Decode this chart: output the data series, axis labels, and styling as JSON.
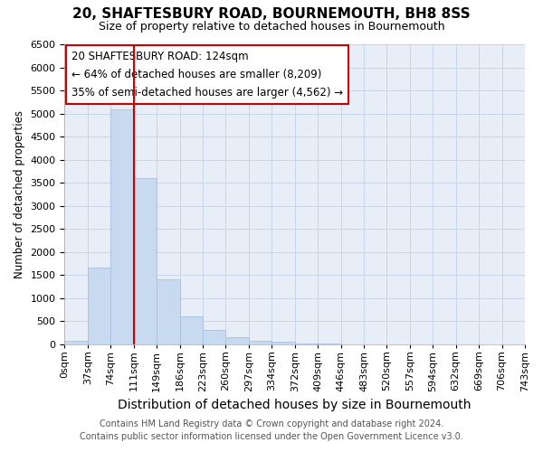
{
  "title1": "20, SHAFTESBURY ROAD, BOURNEMOUTH, BH8 8SS",
  "title2": "Size of property relative to detached houses in Bournemouth",
  "xlabel": "Distribution of detached houses by size in Bournemouth",
  "ylabel": "Number of detached properties",
  "footnote1": "Contains HM Land Registry data © Crown copyright and database right 2024.",
  "footnote2": "Contains public sector information licensed under the Open Government Licence v3.0.",
  "annotation_line1": "20 SHAFTESBURY ROAD: 124sqm",
  "annotation_line2": "← 64% of detached houses are smaller (8,209)",
  "annotation_line3": "35% of semi-detached houses are larger (4,562) →",
  "bar_values": [
    75,
    1650,
    5080,
    3600,
    1400,
    600,
    300,
    150,
    75,
    50,
    20,
    5,
    0,
    0,
    0,
    0,
    0,
    0,
    0,
    0
  ],
  "bin_labels": [
    "0sqm",
    "37sqm",
    "74sqm",
    "111sqm",
    "149sqm",
    "186sqm",
    "223sqm",
    "260sqm",
    "297sqm",
    "334sqm",
    "372sqm",
    "409sqm",
    "446sqm",
    "483sqm",
    "520sqm",
    "557sqm",
    "594sqm",
    "632sqm",
    "669sqm",
    "706sqm",
    "743sqm"
  ],
  "bar_color": "#c8daf0",
  "bar_edge_color": "#a8c0e0",
  "grid_color": "#c8d4e8",
  "plot_bg_color": "#e8eef8",
  "fig_bg_color": "#ffffff",
  "annotation_box_color": "#ffffff",
  "annotation_border_color": "#cc0000",
  "vline_color": "#cc0000",
  "vline_x": 3.0,
  "ylim": [
    0,
    6500
  ],
  "yticks": [
    0,
    500,
    1000,
    1500,
    2000,
    2500,
    3000,
    3500,
    4000,
    4500,
    5000,
    5500,
    6000,
    6500
  ],
  "title1_fontsize": 11,
  "title2_fontsize": 9,
  "xlabel_fontsize": 10,
  "ylabel_fontsize": 8.5,
  "annotation_fontsize": 8.5,
  "footnote_fontsize": 7,
  "tick_fontsize": 8
}
